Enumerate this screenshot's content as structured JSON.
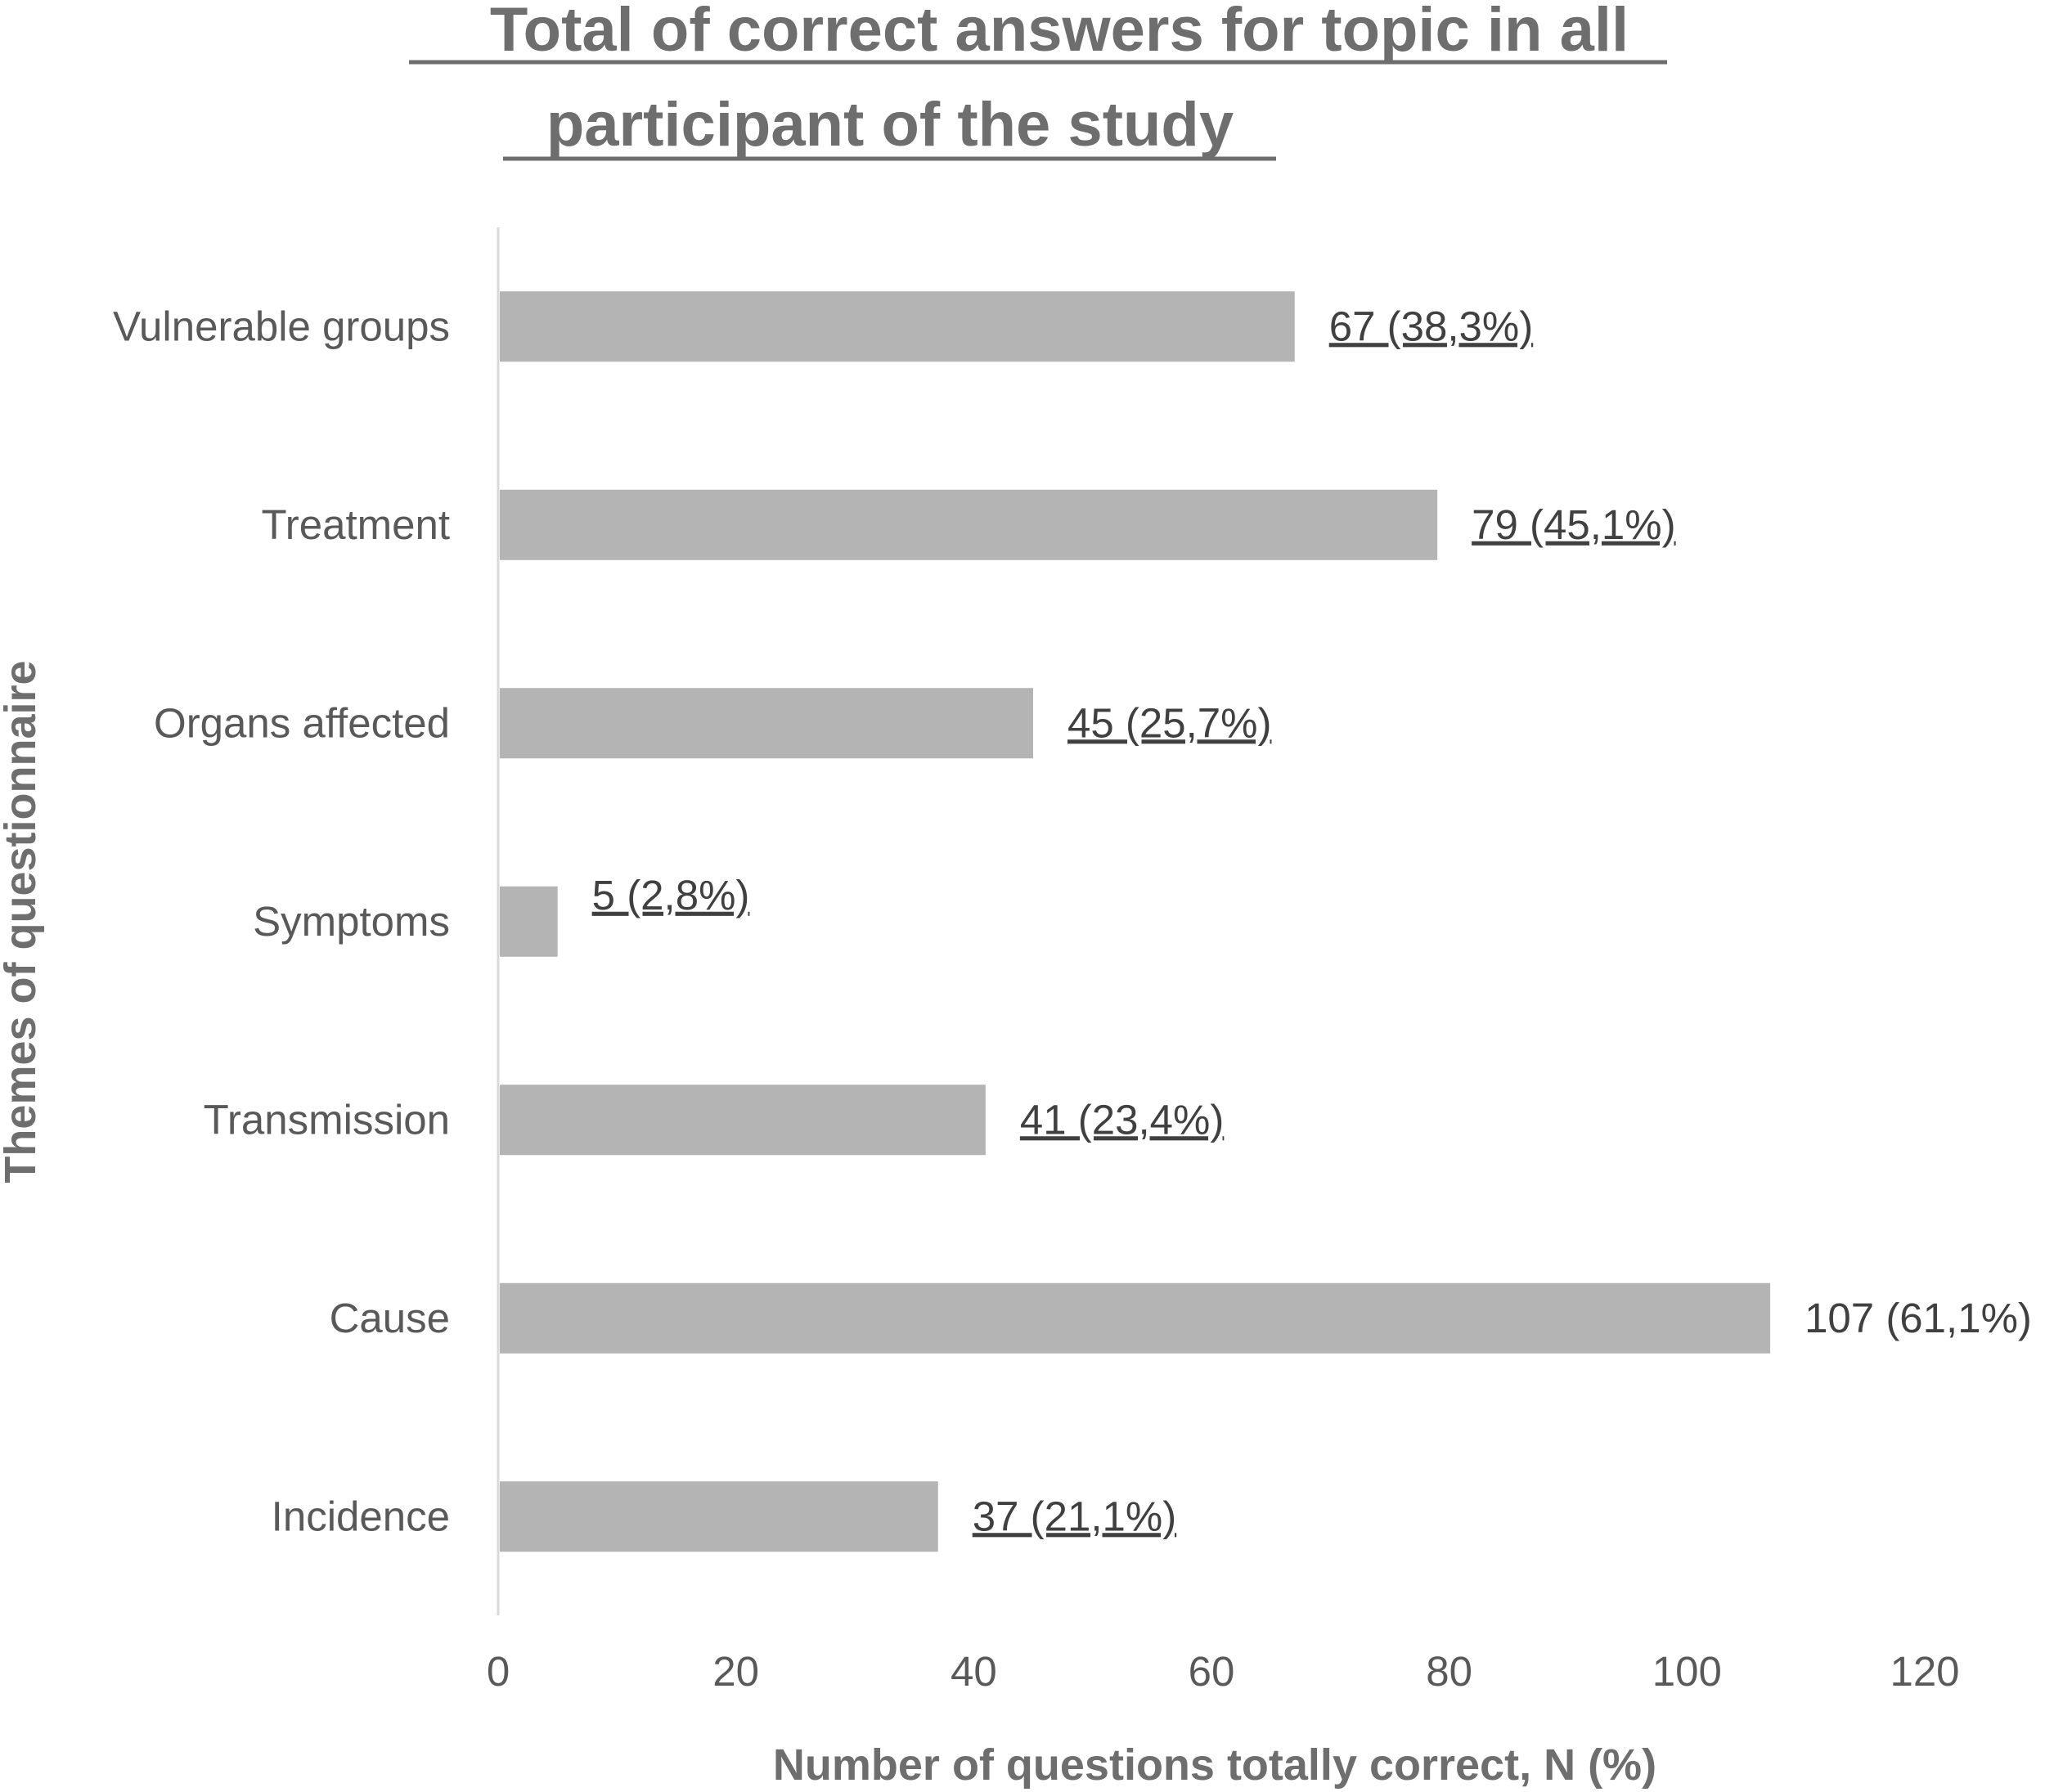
{
  "chart_data": {
    "type": "bar",
    "orientation": "horizontal",
    "title_lines": [
      "Total of correct answers for topic in all",
      "participant of the study"
    ],
    "xlabel": "Number of questions totally correct, N (%)",
    "ylabel": "Themes of questionnaire",
    "xlim": [
      0,
      120
    ],
    "xticks": [
      "0",
      "20",
      "40",
      "60",
      "80",
      "100",
      "120"
    ],
    "categories": [
      "Vulnerable groups",
      "Treatment",
      "Organs affected",
      "Symptoms",
      "Transmission",
      "Cause",
      "Incidence"
    ],
    "values": [
      67,
      79,
      45,
      5,
      41,
      107,
      37
    ],
    "data_labels": [
      "67 (38,3%)",
      "79 (45,1%)",
      "45 (25,7%)",
      "5 (2,8%)",
      "41 (23,4%)",
      "107 (61,1%)",
      "37 (21,1%)"
    ],
    "grid": false,
    "legend": "none",
    "bar_color": "#b4b4b4"
  }
}
